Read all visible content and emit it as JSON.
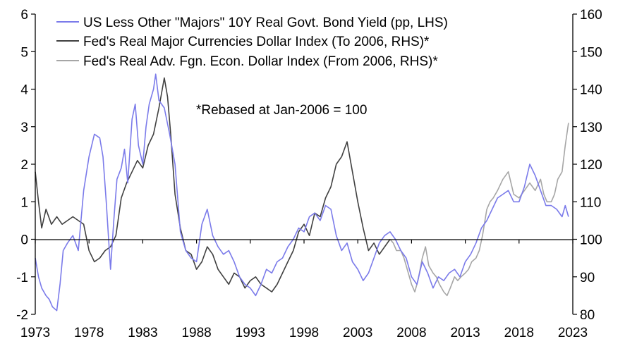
{
  "chart_data": {
    "type": "line",
    "title": "",
    "xlabel": "",
    "ylabel_left": "",
    "ylabel_right": "",
    "x_range": [
      1973,
      2023
    ],
    "x_ticks": [
      "1973",
      "1978",
      "1983",
      "1988",
      "1993",
      "1998",
      "2003",
      "2008",
      "2013",
      "2018",
      "2023"
    ],
    "ylim_left": [
      -2,
      6
    ],
    "y_ticks_left": [
      "6",
      "5",
      "4",
      "3",
      "2",
      "1",
      "0",
      "-1",
      "-2"
    ],
    "ylim_right": [
      80,
      160
    ],
    "y_ticks_right": [
      "160",
      "150",
      "140",
      "130",
      "120",
      "110",
      "100",
      "90",
      "80"
    ],
    "grid": false,
    "legend_position": "top-center",
    "annotation": "*Rebased at Jan-2006 = 100",
    "colors": {
      "us_less_majors": "#7b7bea",
      "fed_major": "#404040",
      "fed_adv": "#a6a6a6",
      "axis": "#000000"
    },
    "series": [
      {
        "name": "US Less Other \"Majors\" 10Y Real Govt. Bond Yield (pp, LHS)",
        "axis": "left",
        "color": "#7b7bea",
        "x": [
          1973.0,
          1973.3,
          1973.6,
          1974.0,
          1974.3,
          1974.6,
          1975.0,
          1975.3,
          1975.6,
          1976.0,
          1976.5,
          1977.0,
          1977.5,
          1978.0,
          1978.5,
          1979.0,
          1979.3,
          1979.6,
          1980.0,
          1980.3,
          1980.6,
          1981.0,
          1981.3,
          1981.6,
          1982.0,
          1982.3,
          1982.6,
          1983.0,
          1983.3,
          1983.6,
          1984.0,
          1984.2,
          1984.5,
          1985.0,
          1985.5,
          1986.0,
          1986.5,
          1987.0,
          1987.5,
          1988.0,
          1988.5,
          1989.0,
          1989.5,
          1990.0,
          1990.5,
          1991.0,
          1991.5,
          1992.0,
          1992.5,
          1993.0,
          1993.5,
          1994.0,
          1994.5,
          1995.0,
          1995.5,
          1996.0,
          1996.5,
          1997.0,
          1997.5,
          1998.0,
          1998.5,
          1999.0,
          1999.5,
          2000.0,
          2000.5,
          2001.0,
          2001.5,
          2002.0,
          2002.5,
          2003.0,
          2003.5,
          2004.0,
          2004.5,
          2005.0,
          2005.5,
          2006.0,
          2006.5,
          2007.0,
          2007.5,
          2008.0,
          2008.5,
          2009.0,
          2009.5,
          2010.0,
          2010.5,
          2011.0,
          2011.5,
          2012.0,
          2012.5,
          2013.0,
          2013.5,
          2014.0,
          2014.5,
          2015.0,
          2015.5,
          2016.0,
          2016.5,
          2017.0,
          2017.5,
          2018.0,
          2018.5,
          2019.0,
          2019.5,
          2020.0,
          2020.5,
          2021.0,
          2021.5,
          2022.0,
          2022.3,
          2022.6
        ],
        "values": [
          -0.5,
          -1.0,
          -1.3,
          -1.5,
          -1.6,
          -1.8,
          -1.9,
          -1.2,
          -0.3,
          -0.1,
          0.1,
          -0.3,
          1.3,
          2.2,
          2.8,
          2.7,
          2.2,
          1.0,
          -0.8,
          0.5,
          1.6,
          1.9,
          2.4,
          1.5,
          3.2,
          3.6,
          2.5,
          2.0,
          3.0,
          3.6,
          4.0,
          4.4,
          3.7,
          3.5,
          2.8,
          2.0,
          0.2,
          -0.3,
          -0.5,
          -0.6,
          0.4,
          0.8,
          0.1,
          -0.2,
          -0.4,
          -0.3,
          -0.6,
          -1.0,
          -1.2,
          -1.3,
          -1.5,
          -1.2,
          -0.8,
          -0.9,
          -0.6,
          -0.5,
          -0.2,
          0.0,
          0.3,
          0.2,
          0.6,
          0.7,
          0.5,
          0.9,
          0.8,
          0.1,
          -0.3,
          -0.1,
          -0.6,
          -0.8,
          -1.1,
          -0.9,
          -0.5,
          -0.1,
          0.1,
          0.2,
          0.0,
          -0.3,
          -0.5,
          -1.0,
          -1.2,
          -0.6,
          -0.9,
          -1.3,
          -1.0,
          -1.1,
          -0.9,
          -0.8,
          -1.0,
          -0.6,
          -0.4,
          -0.1,
          0.3,
          0.5,
          0.8,
          1.1,
          1.2,
          1.3,
          1.0,
          1.0,
          1.4,
          2.0,
          1.7,
          1.3,
          0.9,
          0.9,
          0.8,
          0.6,
          0.9,
          0.6
        ]
      },
      {
        "name": "Fed's Real Major Currencies Dollar Index (To 2006, RHS)*",
        "axis": "right",
        "color": "#404040",
        "x": [
          1973.0,
          1973.3,
          1973.6,
          1974.0,
          1974.5,
          1975.0,
          1975.5,
          1976.0,
          1976.5,
          1977.0,
          1977.5,
          1978.0,
          1978.5,
          1979.0,
          1979.5,
          1980.0,
          1980.5,
          1981.0,
          1981.5,
          1982.0,
          1982.5,
          1983.0,
          1983.5,
          1984.0,
          1984.5,
          1985.0,
          1985.3,
          1985.6,
          1986.0,
          1986.5,
          1987.0,
          1987.5,
          1988.0,
          1988.5,
          1989.0,
          1989.5,
          1990.0,
          1990.5,
          1991.0,
          1991.5,
          1992.0,
          1992.5,
          1993.0,
          1993.5,
          1994.0,
          1994.5,
          1995.0,
          1995.5,
          1996.0,
          1996.5,
          1997.0,
          1997.5,
          1998.0,
          1998.5,
          1999.0,
          1999.5,
          2000.0,
          2000.5,
          2001.0,
          2001.5,
          2002.0,
          2002.5,
          2003.0,
          2003.5,
          2004.0,
          2004.5,
          2005.0,
          2005.5,
          2006.0
        ],
        "values": [
          118,
          110,
          103,
          108,
          104,
          106,
          104,
          105,
          106,
          105,
          104,
          97,
          94,
          95,
          97,
          98,
          101,
          111,
          115,
          118,
          121,
          119,
          125,
          128,
          135,
          143,
          138,
          128,
          112,
          103,
          97,
          96,
          92,
          94,
          98,
          96,
          92,
          90,
          88,
          91,
          90,
          87,
          89,
          90,
          88,
          87,
          86,
          88,
          91,
          94,
          97,
          102,
          104,
          101,
          107,
          106,
          111,
          114,
          120,
          122,
          126,
          118,
          110,
          103,
          97,
          99,
          96,
          98,
          100
        ]
      },
      {
        "name": "Fed's Real Adv. Fgn. Econ. Dollar Index (From 2006, RHS)*",
        "axis": "right",
        "color": "#a6a6a6",
        "x": [
          2006.0,
          2006.3,
          2006.6,
          2007.0,
          2007.3,
          2007.6,
          2008.0,
          2008.3,
          2008.6,
          2009.0,
          2009.3,
          2009.6,
          2010.0,
          2010.3,
          2010.6,
          2011.0,
          2011.3,
          2011.6,
          2012.0,
          2012.3,
          2012.6,
          2013.0,
          2013.3,
          2013.6,
          2014.0,
          2014.3,
          2014.6,
          2015.0,
          2015.3,
          2015.6,
          2016.0,
          2016.5,
          2017.0,
          2017.5,
          2018.0,
          2018.5,
          2019.0,
          2019.5,
          2020.0,
          2020.3,
          2020.6,
          2021.0,
          2021.3,
          2021.6,
          2022.0,
          2022.3,
          2022.6
        ],
        "values": [
          100,
          99,
          97,
          97,
          95,
          92,
          88,
          86,
          89,
          95,
          98,
          93,
          91,
          90,
          88,
          86,
          85,
          87,
          90,
          89,
          90,
          91,
          92,
          94,
          95,
          97,
          101,
          108,
          110,
          111,
          113,
          116,
          118,
          112,
          111,
          113,
          115,
          113,
          116,
          112,
          110,
          110,
          112,
          116,
          118,
          125,
          131
        ]
      }
    ]
  }
}
